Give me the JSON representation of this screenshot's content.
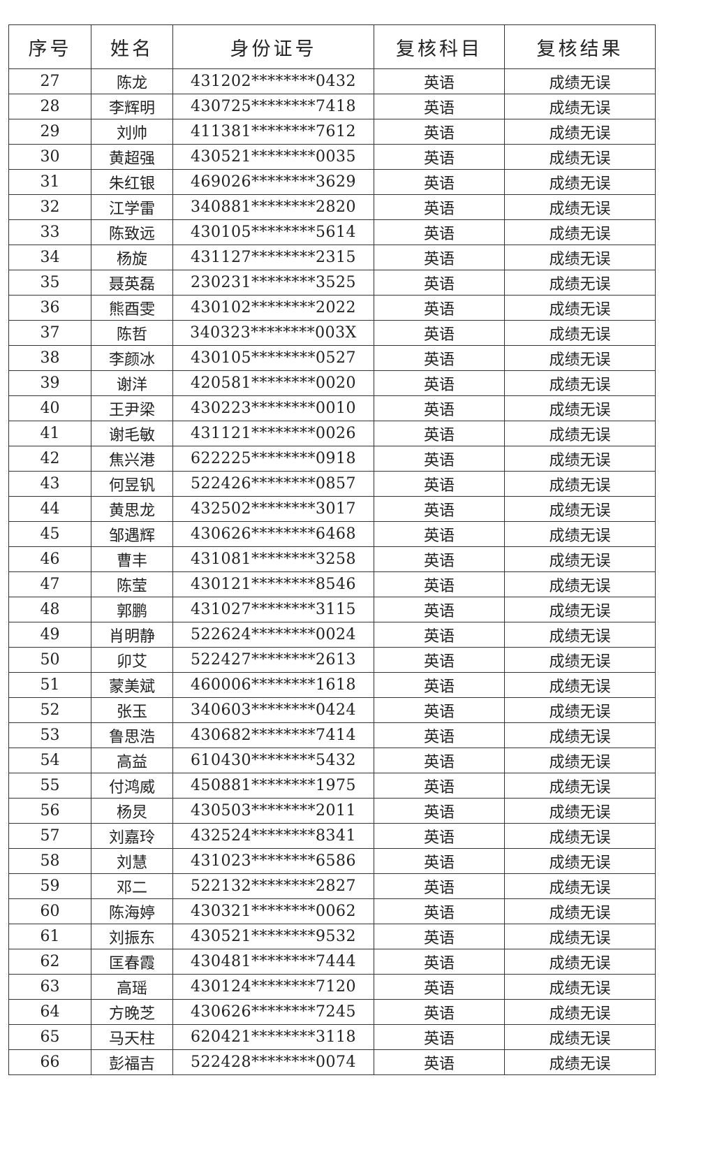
{
  "table": {
    "header": [
      "序号",
      "姓名",
      "身份证号",
      "复核科目",
      "复核结果"
    ],
    "rows": [
      [
        27,
        "陈龙",
        "431202********0432",
        "英语",
        "成绩无误"
      ],
      [
        28,
        "李辉明",
        "430725********7418",
        "英语",
        "成绩无误"
      ],
      [
        29,
        "刘帅",
        "411381********7612",
        "英语",
        "成绩无误"
      ],
      [
        30,
        "黄超强",
        "430521********0035",
        "英语",
        "成绩无误"
      ],
      [
        31,
        "朱红银",
        "469026********3629",
        "英语",
        "成绩无误"
      ],
      [
        32,
        "江学雷",
        "340881********2820",
        "英语",
        "成绩无误"
      ],
      [
        33,
        "陈致远",
        "430105********5614",
        "英语",
        "成绩无误"
      ],
      [
        34,
        "杨旋",
        "431127********2315",
        "英语",
        "成绩无误"
      ],
      [
        35,
        "聂英磊",
        "230231********3525",
        "英语",
        "成绩无误"
      ],
      [
        36,
        "熊酉雯",
        "430102********2022",
        "英语",
        "成绩无误"
      ],
      [
        37,
        "陈哲",
        "340323********003X",
        "英语",
        "成绩无误"
      ],
      [
        38,
        "李颜冰",
        "430105********0527",
        "英语",
        "成绩无误"
      ],
      [
        39,
        "谢洋",
        "420581********0020",
        "英语",
        "成绩无误"
      ],
      [
        40,
        "王尹梁",
        "430223********0010",
        "英语",
        "成绩无误"
      ],
      [
        41,
        "谢毛敏",
        "431121********0026",
        "英语",
        "成绩无误"
      ],
      [
        42,
        "焦兴港",
        "622225********0918",
        "英语",
        "成绩无误"
      ],
      [
        43,
        "何昱钒",
        "522426********0857",
        "英语",
        "成绩无误"
      ],
      [
        44,
        "黄思龙",
        "432502********3017",
        "英语",
        "成绩无误"
      ],
      [
        45,
        "邹遇辉",
        "430626********6468",
        "英语",
        "成绩无误"
      ],
      [
        46,
        "曹丰",
        "431081********3258",
        "英语",
        "成绩无误"
      ],
      [
        47,
        "陈莹",
        "430121********8546",
        "英语",
        "成绩无误"
      ],
      [
        48,
        "郭鹏",
        "431027********3115",
        "英语",
        "成绩无误"
      ],
      [
        49,
        "肖明静",
        "522624********0024",
        "英语",
        "成绩无误"
      ],
      [
        50,
        "卯艾",
        "522427********2613",
        "英语",
        "成绩无误"
      ],
      [
        51,
        "蒙美斌",
        "460006********1618",
        "英语",
        "成绩无误"
      ],
      [
        52,
        "张玉",
        "340603********0424",
        "英语",
        "成绩无误"
      ],
      [
        53,
        "鲁思浩",
        "430682********7414",
        "英语",
        "成绩无误"
      ],
      [
        54,
        "高益",
        "610430********5432",
        "英语",
        "成绩无误"
      ],
      [
        55,
        "付鸿威",
        "450881********1975",
        "英语",
        "成绩无误"
      ],
      [
        56,
        "杨炅",
        "430503********2011",
        "英语",
        "成绩无误"
      ],
      [
        57,
        "刘嘉玲",
        "432524********8341",
        "英语",
        "成绩无误"
      ],
      [
        58,
        "刘慧",
        "431023********6586",
        "英语",
        "成绩无误"
      ],
      [
        59,
        "邓二",
        "522132********2827",
        "英语",
        "成绩无误"
      ],
      [
        60,
        "陈海婷",
        "430321********0062",
        "英语",
        "成绩无误"
      ],
      [
        61,
        "刘振东",
        "430521********9532",
        "英语",
        "成绩无误"
      ],
      [
        62,
        "匡春霞",
        "430481********7444",
        "英语",
        "成绩无误"
      ],
      [
        63,
        "高瑶",
        "430124********7120",
        "英语",
        "成绩无误"
      ],
      [
        64,
        "方晚芝",
        "430626********7245",
        "英语",
        "成绩无误"
      ],
      [
        65,
        "马天柱",
        "620421********3118",
        "英语",
        "成绩无误"
      ],
      [
        66,
        "彭福吉",
        "522428********0074",
        "英语",
        "成绩无误"
      ]
    ]
  }
}
